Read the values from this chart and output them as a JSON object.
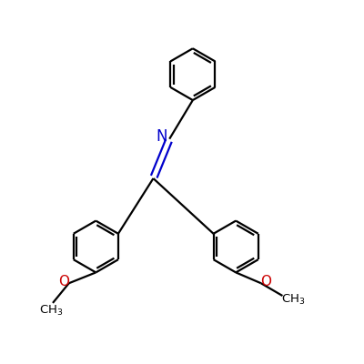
{
  "background_color": "#ffffff",
  "bond_color": "#000000",
  "nitrogen_color": "#0000cc",
  "oxygen_color": "#cc0000",
  "line_width": 1.6,
  "figsize": [
    4.0,
    4.0
  ],
  "dpi": 100,
  "xlim": [
    0,
    10
  ],
  "ylim": [
    0,
    10
  ]
}
